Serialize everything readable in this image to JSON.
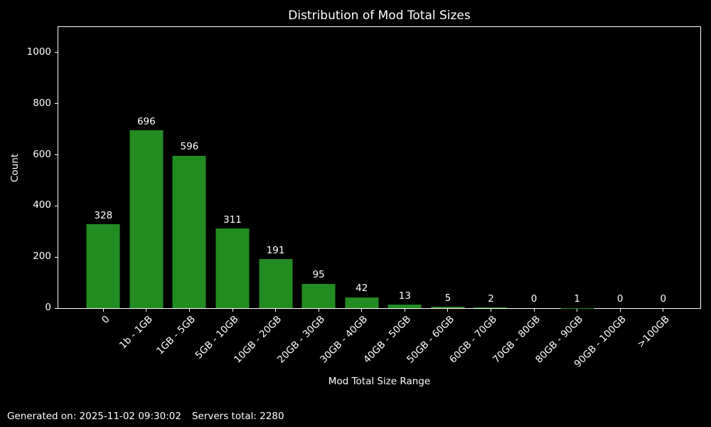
{
  "chart_data": {
    "type": "bar",
    "title": "Distribution of Mod Total Sizes",
    "xlabel": "Mod Total Size Range",
    "ylabel": "Count",
    "categories": [
      "0",
      "1b - 1GB",
      "1GB - 5GB",
      "5GB - 10GB",
      "10GB - 20GB",
      "20GB - 30GB",
      "30GB - 40GB",
      "40GB - 50GB",
      "50GB - 60GB",
      "60GB - 70GB",
      "70GB - 80GB",
      "80GB - 90GB",
      "90GB - 100GB",
      ">100GB"
    ],
    "values": [
      328,
      696,
      596,
      311,
      191,
      95,
      42,
      13,
      5,
      2,
      0,
      1,
      0,
      0
    ],
    "yticks": [
      0,
      200,
      400,
      600,
      800,
      1000
    ],
    "ylim": [
      0,
      1100
    ],
    "grid": false,
    "legend": null,
    "bar_color": "#228B22",
    "background_color": "#000000",
    "text_color": "#ffffff",
    "spine_color": "#ffffff"
  },
  "footer": {
    "generated": "Generated on: 2025-11-02 09:30:02",
    "servers_total": "Servers total: 2280"
  }
}
